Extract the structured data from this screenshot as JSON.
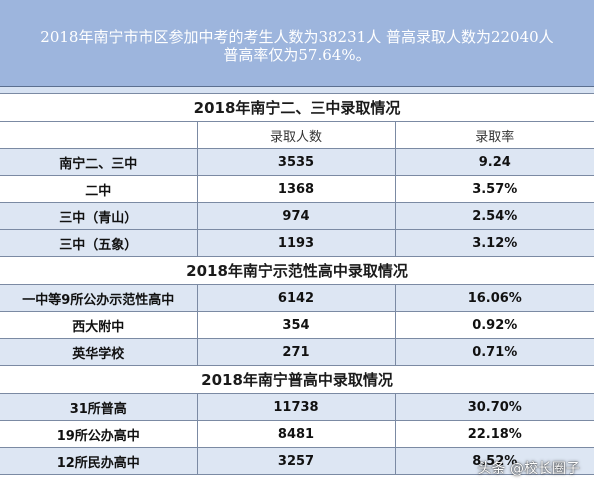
{
  "banner": {
    "line1": "2018年南宁市市区参加中考的考生人数为38231人 普高录取人数为22040人",
    "line2": "普高率仅为57.64%。"
  },
  "columns": [
    "",
    "录取人数",
    "录取率"
  ],
  "sections": [
    {
      "title": "2018年南宁二、三中录取情况",
      "rows": [
        {
          "name": "南宁二、三中",
          "count": "3535",
          "rate": "9.24"
        },
        {
          "name": "二中",
          "count": "1368",
          "rate": "3.57%"
        },
        {
          "name": "三中（青山）",
          "count": "974",
          "rate": "2.54%"
        },
        {
          "name": "三中（五象）",
          "count": "1193",
          "rate": "3.12%"
        }
      ]
    },
    {
      "title": "2018年南宁示范性高中录取情况",
      "rows": [
        {
          "name": "一中等9所公办示范性高中",
          "count": "6142",
          "rate": "16.06%"
        },
        {
          "name": "西大附中",
          "count": "354",
          "rate": "0.92%"
        },
        {
          "name": "英华学校",
          "count": "271",
          "rate": "0.71%"
        }
      ]
    },
    {
      "title": "2018年南宁普高中录取情况",
      "rows": [
        {
          "name": "31所普高",
          "count": "11738",
          "rate": "30.70%"
        },
        {
          "name": "19所公办高中",
          "count": "8481",
          "rate": "22.18%"
        },
        {
          "name": "12所民办高中",
          "count": "3257",
          "rate": "8.52%"
        }
      ]
    }
  ],
  "watermark": "头条 @校长圈子",
  "colors": {
    "banner": "#9db5dd",
    "row_shade": "#dde6f3",
    "border": "#7b8aa3"
  }
}
